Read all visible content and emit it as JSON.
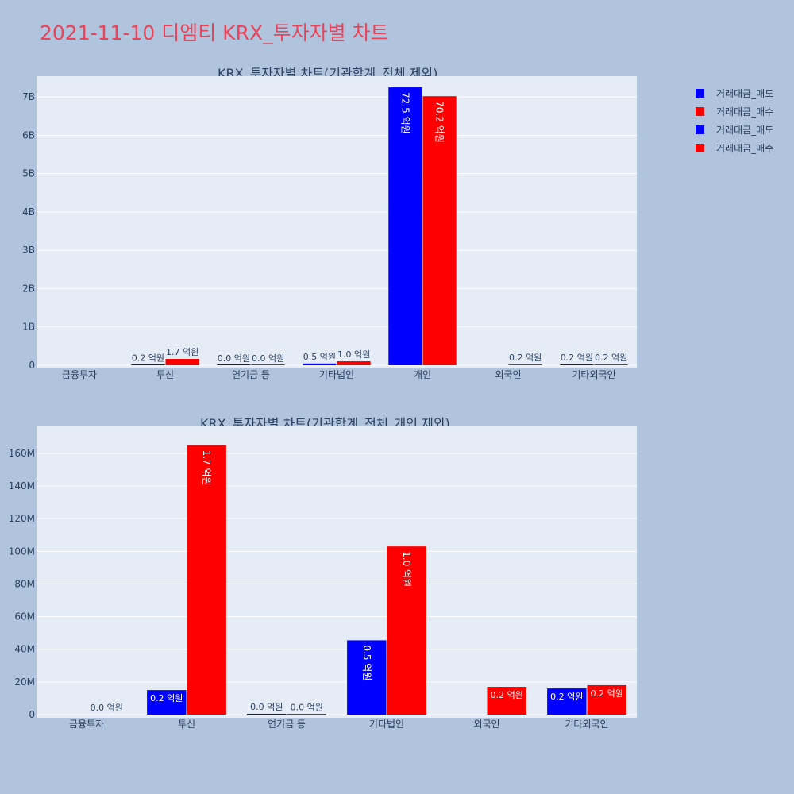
{
  "page": {
    "title": "2021-11-10 디엠티 KRX_투자자별 차트"
  },
  "legend": [
    {
      "label": "거래대금_매도",
      "color": "#0000ff"
    },
    {
      "label": "거래대금_매수",
      "color": "#ff0000"
    },
    {
      "label": "거래대금_매도",
      "color": "#0000ff"
    },
    {
      "label": "거래대금_매수",
      "color": "#ff0000"
    }
  ],
  "colors": {
    "sell": "#0000ff",
    "buy": "#ff0000",
    "plot_bg": "#e5ecf6",
    "page_bg": "#b0c4de",
    "grid": "#ffffff",
    "text": "#2a3f5f"
  },
  "chart_data": [
    {
      "type": "bar",
      "title": "KRX_투자자별 차트(기관합계_전체 제외)",
      "categories": [
        "금융투자",
        "투신",
        "연기금 등",
        "기타법인",
        "개인",
        "외국인",
        "기타외국인"
      ],
      "ylim": [
        0,
        7500000000
      ],
      "yticks": [
        0,
        1000000000,
        2000000000,
        3000000000,
        4000000000,
        5000000000,
        6000000000,
        7000000000
      ],
      "ytick_labels": [
        "0",
        "1B",
        "2B",
        "3B",
        "4B",
        "5B",
        "6B",
        "7B"
      ],
      "grid": true,
      "series": [
        {
          "name": "거래대금_매도",
          "values": [
            null,
            15000000,
            500000,
            45500000,
            7250000000,
            null,
            16000000
          ],
          "labels": [
            null,
            "0.2 억원",
            "0.0 억원",
            "0.5 억원",
            "72.5 억원",
            null,
            "0.2 억원"
          ]
        },
        {
          "name": "거래대금_매수",
          "values": [
            null,
            165000000,
            300000,
            103000000,
            7020000000,
            17000000,
            18000000
          ],
          "labels": [
            null,
            "1.7 억원",
            "0.0 억원",
            "1.0 억원",
            "70.2 억원",
            "0.2 억원",
            "0.2 억원"
          ]
        }
      ]
    },
    {
      "type": "bar",
      "title": "KRX_투자자별 차트(기관합계_전체_개인 제외)",
      "categories": [
        "금융투자",
        "투신",
        "연기금 등",
        "기타법인",
        "외국인",
        "기타외국인"
      ],
      "ylim": [
        0,
        176000000
      ],
      "yticks": [
        0,
        20000000,
        40000000,
        60000000,
        80000000,
        100000000,
        120000000,
        140000000,
        160000000
      ],
      "ytick_labels": [
        "0",
        "20M",
        "40M",
        "60M",
        "80M",
        "100M",
        "120M",
        "140M",
        "160M"
      ],
      "grid": true,
      "series": [
        {
          "name": "거래대금_매도",
          "values": [
            null,
            15000000,
            500000,
            45500000,
            null,
            16000000
          ],
          "labels": [
            null,
            "0.2 억원",
            "0.0 억원",
            "0.5 억원",
            null,
            "0.2 억원"
          ]
        },
        {
          "name": "거래대금_매수",
          "values": [
            0,
            165000000,
            300000,
            103000000,
            17000000,
            18000000
          ],
          "labels": [
            "0.0 억원",
            "1.7 억원",
            "0.0 억원",
            "1.0 억원",
            "0.2 억원",
            "0.2 억원"
          ]
        }
      ]
    }
  ]
}
